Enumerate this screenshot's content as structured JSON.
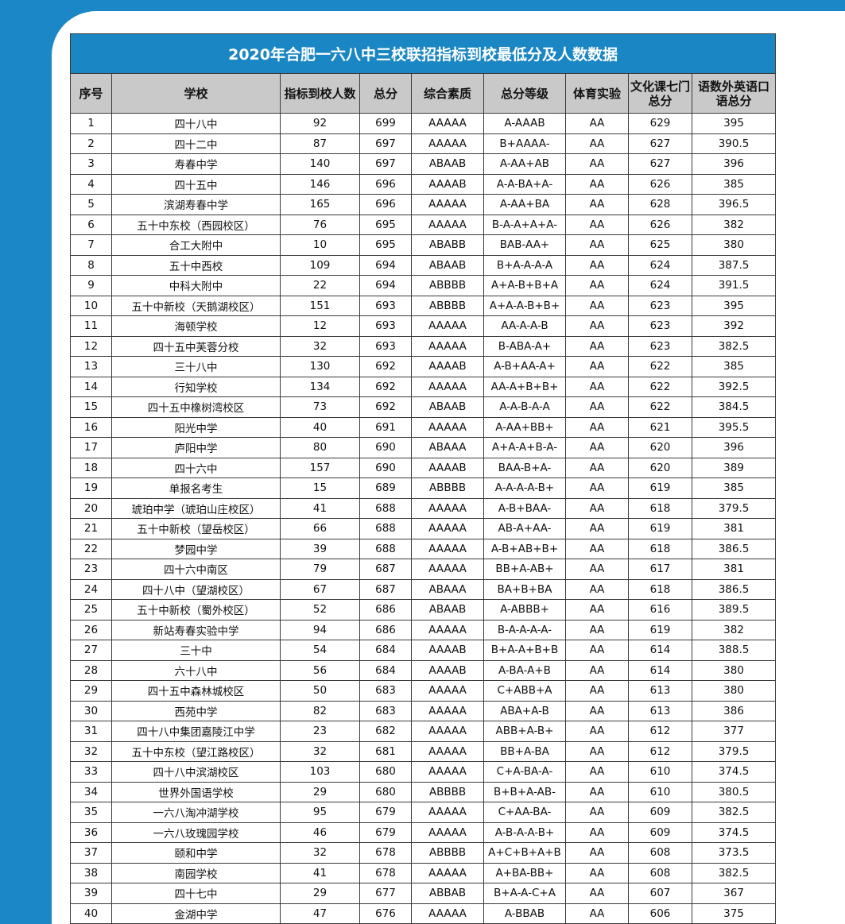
{
  "title": "2020年合肥一六八中三校联招指标到校最低分及人数数据",
  "table": {
    "header": [
      "序号",
      "学校",
      "指标到校人数",
      "总分",
      "综合素质",
      "总分等级",
      "体育实验",
      "文化课七门总分",
      "语数外英语口语总分"
    ],
    "rows": [
      [
        "1",
        "四十八中",
        "92",
        "699",
        "AAAAA",
        "A-AAAB",
        "AA",
        "629",
        "395"
      ],
      [
        "2",
        "四十二中",
        "87",
        "697",
        "AAAAA",
        "B+AAAA-",
        "AA",
        "627",
        "390.5"
      ],
      [
        "3",
        "寿春中学",
        "140",
        "697",
        "ABAAB",
        "A-AA+AB",
        "AA",
        "627",
        "396"
      ],
      [
        "4",
        "四十五中",
        "146",
        "696",
        "AAAAB",
        "A-A-BA+A-",
        "AA",
        "626",
        "385"
      ],
      [
        "5",
        "滨湖寿春中学",
        "165",
        "696",
        "AAAAA",
        "A-AA+BA",
        "AA",
        "628",
        "396.5"
      ],
      [
        "6",
        "五十中东校（西园校区）",
        "76",
        "695",
        "AAAAA",
        "B-A-A+A+A-",
        "AA",
        "626",
        "382"
      ],
      [
        "7",
        "合工大附中",
        "10",
        "695",
        "ABABB",
        "BAB-AA+",
        "AA",
        "625",
        "380"
      ],
      [
        "8",
        "五十中西校",
        "109",
        "694",
        "ABAAB",
        "B+A-A-A-A",
        "AA",
        "624",
        "387.5"
      ],
      [
        "9",
        "中科大附中",
        "22",
        "694",
        "ABBBB",
        "A+A-B+B+A",
        "AA",
        "624",
        "391.5"
      ],
      [
        "10",
        "五十中新校（天鹅湖校区）",
        "151",
        "693",
        "ABBBB",
        "A+A-A-B+B+",
        "AA",
        "623",
        "395"
      ],
      [
        "11",
        "海顿学校",
        "12",
        "693",
        "AAAAA",
        "AA-A-A-B",
        "AA",
        "623",
        "392"
      ],
      [
        "12",
        "四十五中芙蓉分校",
        "32",
        "693",
        "AAAAA",
        "B-ABA-A+",
        "AA",
        "623",
        "382.5"
      ],
      [
        "13",
        "三十八中",
        "130",
        "692",
        "AAAAB",
        "A-B+AA-A+",
        "AA",
        "622",
        "385"
      ],
      [
        "14",
        "行知学校",
        "134",
        "692",
        "AAAAA",
        "AA-A+B+B+",
        "AA",
        "622",
        "392.5"
      ],
      [
        "15",
        "四十五中橡树湾校区",
        "73",
        "692",
        "ABAAB",
        "A-A-B-A-A",
        "AA",
        "622",
        "384.5"
      ],
      [
        "16",
        "阳光中学",
        "40",
        "691",
        "AAAAA",
        "A-AA+BB+",
        "AA",
        "621",
        "395.5"
      ],
      [
        "17",
        "庐阳中学",
        "80",
        "690",
        "ABAAA",
        "A+A-A+B-A-",
        "AA",
        "620",
        "396"
      ],
      [
        "18",
        "四十六中",
        "157",
        "690",
        "AAAAB",
        "BAA-B+A-",
        "AA",
        "620",
        "389"
      ],
      [
        "19",
        "单报名考生",
        "15",
        "689",
        "ABBBB",
        "A-A-A-A-B+",
        "AA",
        "619",
        "385"
      ],
      [
        "20",
        "琥珀中学（琥珀山庄校区）",
        "41",
        "688",
        "AAAAA",
        "A-B+BAA-",
        "AA",
        "618",
        "379.5"
      ],
      [
        "21",
        "五十中新校（望岳校区）",
        "66",
        "688",
        "AAAAA",
        "AB-A+AA-",
        "AA",
        "619",
        "381"
      ],
      [
        "22",
        "梦园中学",
        "39",
        "688",
        "AAAAA",
        "A-B+AB+B+",
        "AA",
        "618",
        "386.5"
      ],
      [
        "23",
        "四十六中南区",
        "79",
        "687",
        "AAAAA",
        "BB+A-AB+",
        "AA",
        "617",
        "381"
      ],
      [
        "24",
        "四十八中（望湖校区）",
        "67",
        "687",
        "ABAAA",
        "BA+B+BA",
        "AA",
        "618",
        "386.5"
      ],
      [
        "25",
        "五十中新校（蜀外校区）",
        "52",
        "686",
        "ABAAB",
        "A-ABBB+",
        "AA",
        "616",
        "389.5"
      ],
      [
        "26",
        "新站寿春实验中学",
        "94",
        "686",
        "AAAAA",
        "B-A-A-A-A-",
        "AA",
        "619",
        "382"
      ],
      [
        "27",
        "三十中",
        "54",
        "684",
        "AAAAB",
        "B+A-A+B+B",
        "AA",
        "614",
        "388.5"
      ],
      [
        "28",
        "六十八中",
        "56",
        "684",
        "AAAAB",
        "A-BA-A+B",
        "AA",
        "614",
        "380"
      ],
      [
        "29",
        "四十五中森林城校区",
        "50",
        "683",
        "AAAAA",
        "C+ABB+A",
        "AA",
        "613",
        "380"
      ],
      [
        "30",
        "西苑中学",
        "82",
        "683",
        "AAAAA",
        "ABA+A-B",
        "AA",
        "613",
        "386"
      ],
      [
        "31",
        "四十八中集团嘉陵江中学",
        "23",
        "682",
        "AAAAA",
        "ABB+A-B+",
        "AA",
        "612",
        "377"
      ],
      [
        "32",
        "五十中东校（望江路校区）",
        "32",
        "681",
        "AAAAA",
        "BB+A-BA",
        "AA",
        "612",
        "379.5"
      ],
      [
        "33",
        "四十八中滨湖校区",
        "103",
        "680",
        "AAAAA",
        "C+A-BA-A-",
        "AA",
        "610",
        "374.5"
      ],
      [
        "34",
        "世界外国语学校",
        "29",
        "680",
        "ABBBB",
        "B+B+A-AB-",
        "AA",
        "610",
        "380.5"
      ],
      [
        "35",
        "一六八淘冲湖学校",
        "95",
        "679",
        "AAAAA",
        "C+AA-BA-",
        "AA",
        "609",
        "382.5"
      ],
      [
        "36",
        "一六八玫瑰园学校",
        "46",
        "679",
        "AAAAA",
        "A-B-A-A-B+",
        "AA",
        "609",
        "374.5"
      ],
      [
        "37",
        "颐和中学",
        "32",
        "678",
        "ABBBB",
        "A+C+B+A+B",
        "AA",
        "608",
        "373.5"
      ],
      [
        "38",
        "南园学校",
        "41",
        "678",
        "AAAAA",
        "A+BA-BB+",
        "AA",
        "608",
        "382.5"
      ],
      [
        "39",
        "四十七中",
        "29",
        "677",
        "ABBAB",
        "B+A-A-C+A",
        "AA",
        "607",
        "367"
      ],
      [
        "40",
        "金湖中学",
        "47",
        "676",
        "AAAAA",
        "A-BBAB",
        "AA",
        "606",
        "375"
      ]
    ]
  }
}
